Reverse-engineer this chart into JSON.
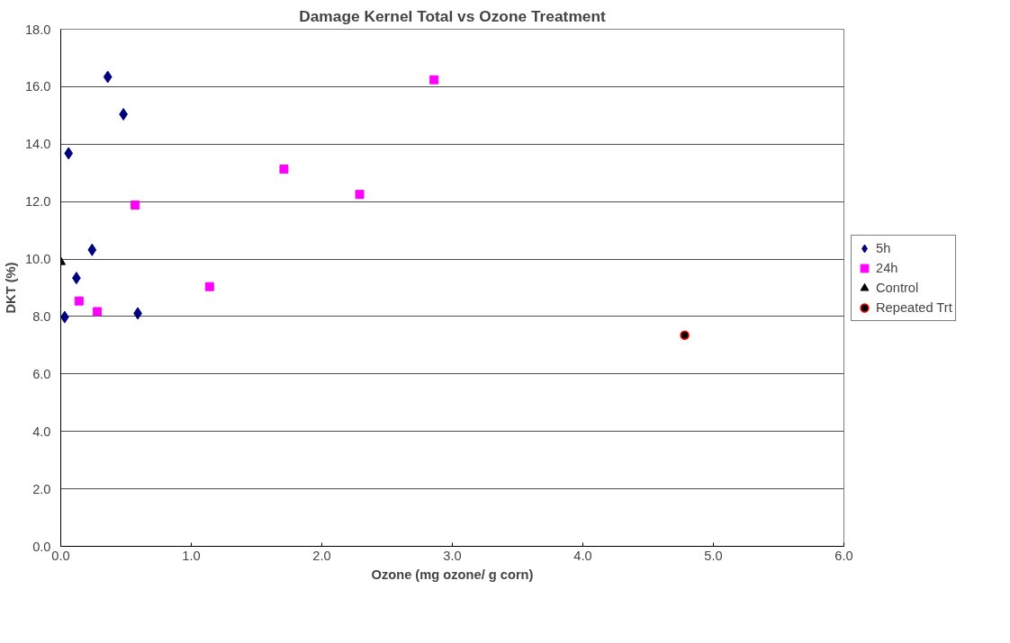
{
  "chart_data": {
    "type": "scatter",
    "title": "Damage Kernel Total vs Ozone Treatment",
    "xlabel": "Ozone (mg ozone/ g corn)",
    "ylabel": "DKT (%)",
    "xlim": [
      0,
      6
    ],
    "xticks": [
      {
        "value": 0,
        "label": "0.0"
      },
      {
        "value": 1,
        "label": "1.0"
      },
      {
        "value": 2,
        "label": "2.0"
      },
      {
        "value": 3,
        "label": "3.0"
      },
      {
        "value": 4,
        "label": "4.0"
      },
      {
        "value": 5,
        "label": "5.0"
      },
      {
        "value": 6,
        "label": "6.0"
      }
    ],
    "ylim": [
      0,
      18
    ],
    "yticks": [
      {
        "value": 0,
        "label": "0.0"
      },
      {
        "value": 2,
        "label": "2.0"
      },
      {
        "value": 4,
        "label": "4.0"
      },
      {
        "value": 6,
        "label": "6.0"
      },
      {
        "value": 8,
        "label": "8.0"
      },
      {
        "value": 10,
        "label": "10.0"
      },
      {
        "value": 12,
        "label": "12.0"
      },
      {
        "value": 14,
        "label": "14.0"
      },
      {
        "value": 16,
        "label": "16.0"
      },
      {
        "value": 18,
        "label": "18.0"
      }
    ],
    "grid": "y",
    "legend": "right",
    "series": [
      {
        "name": "5h",
        "color": "#000080",
        "marker": "diamond",
        "x": [
          0.36,
          0.48,
          0.06,
          0.24,
          0.12,
          0.03,
          0.59
        ],
        "values": [
          16.34,
          15.04,
          13.68,
          10.32,
          9.34,
          7.98,
          8.11
        ]
      },
      {
        "name": "24h",
        "color": "#ff00ff",
        "marker": "square",
        "x": [
          0.14,
          0.28,
          0.57,
          1.14,
          2.86,
          1.71,
          2.29
        ],
        "values": [
          8.54,
          8.17,
          11.88,
          9.04,
          16.24,
          13.13,
          12.25
        ]
      },
      {
        "name": "Control",
        "color": "#000000",
        "marker": "triangle",
        "x": [
          0
        ],
        "values": [
          9.9
        ]
      },
      {
        "name": "Repeated Trt",
        "color": "#000000",
        "marker": "circle",
        "x": [
          4.78
        ],
        "values": [
          7.35
        ]
      }
    ]
  }
}
